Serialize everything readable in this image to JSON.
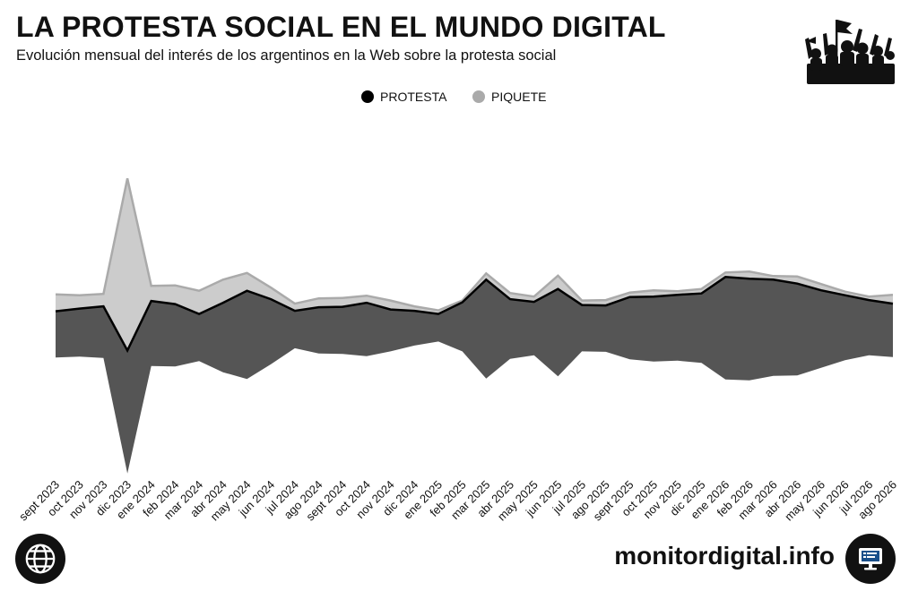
{
  "header": {
    "title": "LA PROTESTA SOCIAL EN EL MUNDO DIGITAL",
    "subtitle": "Evolución mensual del interés de los argentinos en la Web sobre la protesta social",
    "logo_icon": "protest-crowd-icon"
  },
  "footer": {
    "site": "monitordigital.info",
    "left_icon": "globe-icon",
    "right_icon": "monitor-icon"
  },
  "chart_data": {
    "type": "area",
    "variant": "streamgraph",
    "categories": [
      "sept 2023",
      "oct 2023",
      "nov 2023",
      "dic 2023",
      "ene 2024",
      "feb 2024",
      "mar 2024",
      "abr 2024",
      "may 2024",
      "jun 2024",
      "jul 2024",
      "ago 2024",
      "sept 2024",
      "oct 2024",
      "nov 2024",
      "dic 2024",
      "ene 2025",
      "feb 2025",
      "mar 2025",
      "abr 2025",
      "may 2025",
      "jun 2025",
      "jul 2025",
      "ago 2025",
      "sept 2025",
      "oct 2025",
      "nov 2025",
      "dic 2025",
      "ene 2026",
      "feb 2026",
      "mar 2026",
      "abr 2026",
      "may 2026",
      "jun 2026",
      "jul 2026",
      "ago 2026"
    ],
    "series": [
      {
        "name": "PROTESTA",
        "color": "#555555",
        "marker_color": "#000000",
        "values": [
          52,
          54,
          58,
          138,
          73,
          70,
          53,
          78,
          99,
          73,
          42,
          52,
          53,
          60,
          47,
          39,
          31,
          55,
          111,
          67,
          60,
          98,
          52,
          52,
          70,
          73,
          74,
          78,
          115,
          114,
          108,
          103,
          87,
          73,
          62,
          60
        ]
      },
      {
        "name": "PIQUETE",
        "color": "#cccccc",
        "marker_color": "#aaaaaa",
        "values": [
          19,
          15,
          14,
          193,
          17,
          21,
          26,
          26,
          20,
          13,
          8,
          10,
          10,
          8,
          10,
          5,
          4,
          2,
          7,
          7,
          6,
          15,
          5,
          6,
          5,
          7,
          4,
          5,
          5,
          8,
          4,
          8,
          7,
          4,
          4,
          10
        ]
      }
    ],
    "legend_position": "top-center",
    "y_axis": "hidden",
    "grid": false
  }
}
